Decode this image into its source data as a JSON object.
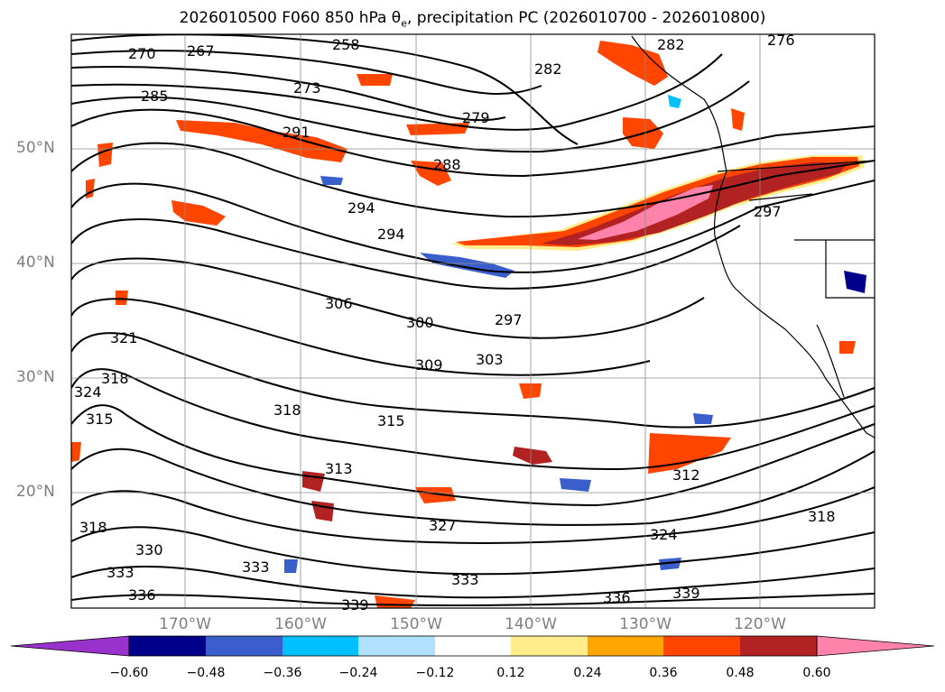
{
  "title_prefix": "2026010500 F060 850 hPa θ",
  "title_sub": "e",
  "title_suffix": ", precipitation PC (2026010700 - 2026010800)",
  "lat_labels": [
    "50°N",
    "40°N",
    "30°N",
    "20°N"
  ],
  "lon_labels": [
    "170°W",
    "160°W",
    "150°W",
    "140°W",
    "130°W",
    "120°W"
  ],
  "colorbar": {
    "colors": [
      "#9932cc",
      "#00008b",
      "#3a5fcd",
      "#00bfff",
      "#b0e2ff",
      "#ffffff",
      "#ffec8b",
      "#ffa500",
      "#ff4500",
      "#b22222",
      "#ff82ab"
    ],
    "ticks": [
      "−0.60",
      "−0.48",
      "−0.36",
      "−0.24",
      "−0.12",
      "0.12",
      "0.24",
      "0.36",
      "0.48",
      "0.60"
    ]
  },
  "contour_labels": [
    "270",
    "267",
    "273",
    "282",
    "282",
    "276",
    "279",
    "285",
    "291",
    "288",
    "294",
    "294",
    "297",
    "297",
    "306",
    "300",
    "303",
    "309",
    "321",
    "318",
    "324",
    "315",
    "318",
    "315",
    "312",
    "327",
    "324",
    "318",
    "330",
    "333",
    "333",
    "318",
    "336",
    "336",
    "339",
    "339",
    "333",
    "313",
    "258"
  ]
}
